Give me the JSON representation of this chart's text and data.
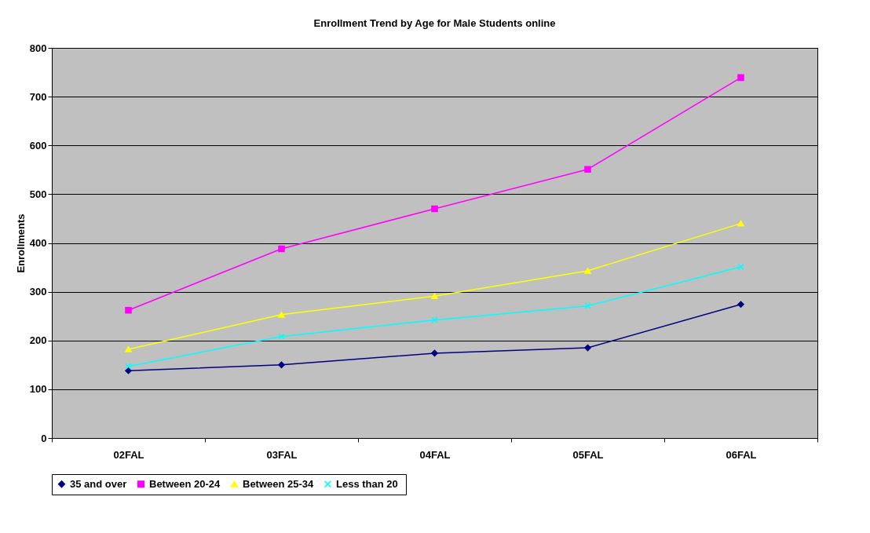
{
  "chart_data": {
    "type": "line",
    "title": "Enrollment Trend by Age for Male Students online",
    "ylabel": "Enrollments",
    "categories": [
      "02FAL",
      "03FAL",
      "04FAL",
      "05FAL",
      "06FAL"
    ],
    "series": [
      {
        "name": "35 and over",
        "color": "#000080",
        "marker": "diamond",
        "values": [
          138,
          150,
          174,
          185,
          274
        ]
      },
      {
        "name": "Between 20-24",
        "color": "#ff00ff",
        "marker": "square",
        "values": [
          262,
          388,
          470,
          551,
          739
        ]
      },
      {
        "name": "Between 25-34",
        "color": "#ffff00",
        "marker": "triangle",
        "values": [
          182,
          253,
          291,
          343,
          440
        ]
      },
      {
        "name": "Less than  20",
        "color": "#00ffff",
        "marker": "cross",
        "values": [
          147,
          208,
          242,
          271,
          351
        ]
      }
    ],
    "ylim": [
      0,
      800
    ],
    "yticks": [
      0,
      100,
      200,
      300,
      400,
      500,
      600,
      700,
      800
    ],
    "grid": "y",
    "legend": "bottom"
  }
}
